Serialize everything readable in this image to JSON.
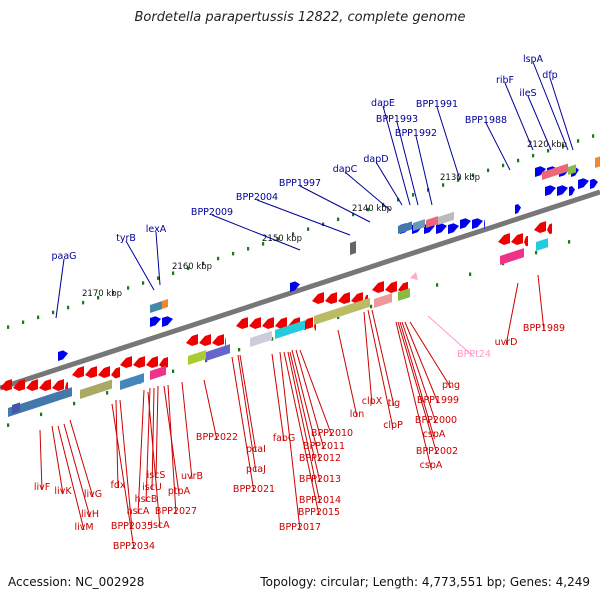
{
  "title": "Bordetella parapertussis 12822, complete genome",
  "accession": "Accession: NC_002928",
  "summary": "Topology: circular; Length: 4,773,551 bp; Genes: 4,249",
  "colors": {
    "forward_gene": "#0000ee",
    "reverse_gene": "#ee0000",
    "forward_label": "#000099",
    "reverse_label": "#cc0000",
    "rna_label": "#ff99cc",
    "backbone": "#777777",
    "tick": "#1a7a1a"
  },
  "scale_ticks": [
    "2120 kbp",
    "2130 kbp",
    "2140 kbp",
    "2150 kbp",
    "2160 kbp",
    "2170 kbp"
  ],
  "forward_genes": [
    "lspA",
    "dfp",
    "ribF",
    "ileS",
    "BPP1991",
    "dapE",
    "BPP1993",
    "BPP1992",
    "BPP1988",
    "dapD",
    "dapC",
    "BPP1997",
    "BPP2004",
    "BPP2009",
    "lexA",
    "tyrB",
    "paaG"
  ],
  "rna_genes": [
    "BPPt24"
  ],
  "reverse_genes": [
    "phg",
    "BPP1999",
    "BPP2000",
    "cspA",
    "BPP2002",
    "cspA",
    "clpX",
    "tig",
    "clpP",
    "lon",
    "BPP2010",
    "BPP2011",
    "BPP2012",
    "BPP2013",
    "fabG",
    "BPP2014",
    "BPP2015",
    "BPP2017",
    "pcaI",
    "pcaJ",
    "BPP2021",
    "BPP2022",
    "uvrB",
    "BPP2027",
    "ptpA",
    "iscS",
    "iscU",
    "hscB",
    "hscA",
    "iscA",
    "fdx",
    "BPP2035",
    "BPP2034",
    "livG",
    "livH",
    "livM",
    "livK",
    "livF",
    "uvrD",
    "BPP1989"
  ]
}
